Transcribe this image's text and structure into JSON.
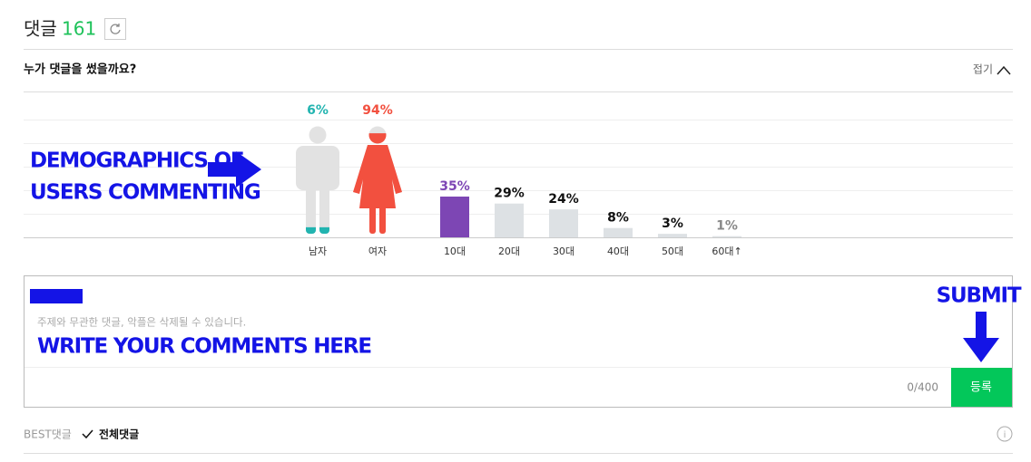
{
  "header": {
    "title": "댓글",
    "count": 161
  },
  "demographics": {
    "title": "누가 댓글을 썼을까요?",
    "toggle": "접기"
  },
  "chart_data": [
    {
      "type": "pictogram",
      "categories": [
        "남자",
        "여자"
      ],
      "values": [
        6,
        94
      ],
      "value_labels": [
        "6%",
        "94%"
      ],
      "colors": [
        "#22b4b0",
        "#f2503f"
      ],
      "base_color": "#e2e2e2"
    },
    {
      "type": "bar",
      "categories": [
        "10대",
        "20대",
        "30대",
        "40대",
        "50대",
        "60대↑"
      ],
      "values": [
        35,
        29,
        24,
        8,
        3,
        1
      ],
      "value_labels": [
        "35%",
        "29%",
        "24%",
        "8%",
        "3%",
        "1%"
      ],
      "colors": [
        "#7d46b4",
        "#dde1e4",
        "#dde1e4",
        "#dde1e4",
        "#dde1e4",
        "#dde1e4"
      ],
      "label_colors": [
        "#7d46b4",
        "#111111",
        "#111111",
        "#111111",
        "#111111",
        "#888888"
      ]
    }
  ],
  "annotations": {
    "demographics": [
      "DEMOGRAPHICS OF",
      "USERS COMMENTING"
    ],
    "write": "WRITE YOUR COMMENTS HERE",
    "submit": "SUBMIT"
  },
  "comment_box": {
    "placeholder": "주제와 무관한 댓글, 악플은 삭제될 수 있습니다.",
    "counter": "0/400",
    "submit": "등록"
  },
  "tabs": [
    "BEST댓글",
    "전체댓글"
  ]
}
